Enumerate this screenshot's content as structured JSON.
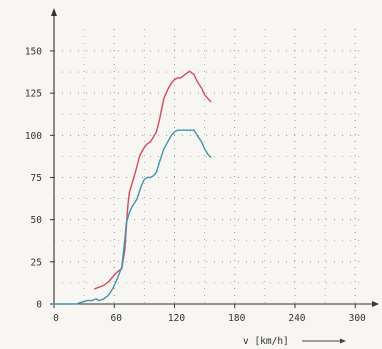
{
  "chart_data": {
    "type": "line",
    "title": "",
    "xlabel": "v [km/h]",
    "ylabel": "",
    "xlim": [
      0,
      200
    ],
    "ylim": [
      0,
      140
    ],
    "x_ticks": [
      0,
      40,
      80,
      120,
      160,
      200
    ],
    "y_ticks": [
      0,
      25,
      50,
      75,
      100,
      125,
      150
    ],
    "x_tick_labels": [
      "0",
      "60",
      "120",
      "180",
      "240",
      "300"
    ],
    "y_tick_labels": [
      "0",
      "25",
      "50",
      "75",
      "100",
      "125",
      "150"
    ],
    "grid": true,
    "grid_style": "dotted",
    "series": [
      {
        "color": "#d64a5e",
        "x": [
          27,
          30,
          33,
          36,
          39,
          42,
          45,
          47,
          48,
          49,
          50,
          52,
          54,
          57,
          60,
          62,
          64,
          66,
          68,
          70,
          73,
          76,
          78,
          80,
          82,
          84,
          87,
          90,
          93,
          95,
          98,
          100,
          102,
          104
        ],
        "y": [
          9,
          10,
          11,
          13,
          16,
          19,
          21,
          32,
          45,
          58,
          66,
          72,
          78,
          88,
          93,
          95,
          96,
          99,
          102,
          109,
          122,
          128,
          131,
          133,
          134,
          134,
          136,
          138,
          136,
          132,
          128,
          124,
          122,
          120
        ]
      },
      {
        "color": "#3f96ac",
        "x": [
          0,
          5,
          10,
          15,
          18,
          22,
          25,
          28,
          30,
          33,
          36,
          39,
          42,
          45,
          47,
          48,
          50,
          52,
          55,
          58,
          60,
          62,
          64,
          66,
          68,
          70,
          73,
          76,
          78,
          80,
          82,
          84,
          87,
          90,
          93,
          95,
          98,
          100,
          102,
          104
        ],
        "y": [
          0,
          0,
          0,
          0,
          1,
          2,
          2,
          3,
          2,
          3,
          5,
          9,
          15,
          22,
          38,
          48,
          54,
          58,
          62,
          70,
          74,
          75,
          75,
          76,
          78,
          84,
          92,
          97,
          100,
          102,
          103,
          103,
          103,
          103,
          103,
          100,
          96,
          92,
          89,
          87
        ]
      }
    ]
  }
}
